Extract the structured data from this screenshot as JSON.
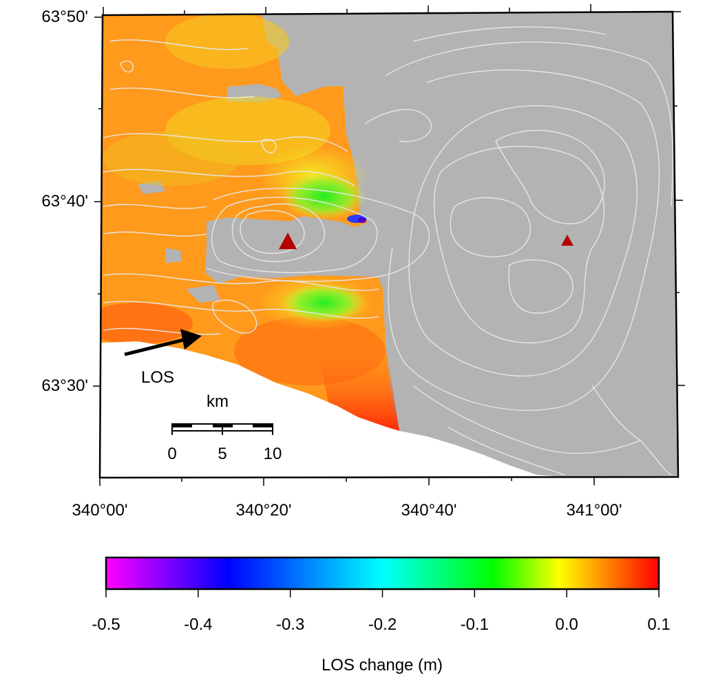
{
  "map": {
    "lat_ticks": [
      "63°50'",
      "63°40'",
      "63°30'"
    ],
    "lon_ticks": [
      "340°00'",
      "340°20'",
      "340°40'",
      "341°00'"
    ],
    "los_arrow_label": "LOS",
    "volcano_markers": [
      "red-triangle",
      "red-triangle"
    ],
    "colors": {
      "land_nodata": "#b3b3b3",
      "sea": "#ffffff",
      "contour": "#e6e6e6",
      "marker": "#b30000"
    }
  },
  "scale_bar": {
    "unit": "km",
    "ticks": [
      "0",
      "5",
      "10"
    ]
  },
  "colorbar": {
    "title": "LOS change (m)",
    "ticks": [
      "-0.5",
      "-0.4",
      "-0.3",
      "-0.2",
      "-0.1",
      "0.0",
      "0.1"
    ],
    "range": [
      -0.5,
      0.1
    ],
    "colors": [
      "#ff00ff",
      "#0000ff",
      "#00ffff",
      "#00ff00",
      "#ffff00",
      "#ff0000"
    ]
  }
}
